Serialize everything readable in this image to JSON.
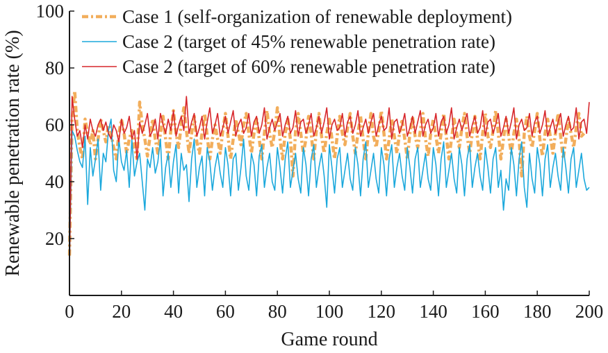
{
  "chart_data": {
    "type": "line",
    "title": "",
    "xlabel": "Game round",
    "ylabel": "Renewable penetration rate (%)",
    "xlim": [
      0,
      200
    ],
    "ylim": [
      0,
      100
    ],
    "x_ticks": [
      0,
      20,
      40,
      60,
      80,
      100,
      120,
      140,
      160,
      180,
      200
    ],
    "y_ticks": [
      20,
      40,
      60,
      80,
      100
    ],
    "grid": false,
    "legend_position": "top",
    "series": [
      {
        "name": "Case 1 (self-organization of renewable deployment)",
        "color": "#F2AE5C",
        "dash": "dash-dot",
        "x_start": 0,
        "x_step": 1,
        "values": [
          14,
          62,
          72,
          58,
          52,
          48,
          62,
          57,
          53,
          58,
          48,
          55,
          62,
          58,
          54,
          60,
          57,
          52,
          48,
          57,
          62,
          57,
          50,
          55,
          58,
          52,
          48,
          68,
          60,
          55,
          49,
          56,
          62,
          55,
          50,
          57,
          63,
          55,
          48,
          58,
          65,
          57,
          52,
          60,
          66,
          58,
          50,
          57,
          63,
          54,
          50,
          57,
          64,
          56,
          48,
          55,
          60,
          55,
          50,
          58,
          64,
          56,
          48,
          55,
          62,
          57,
          53,
          60,
          64,
          57,
          50,
          57,
          62,
          55,
          48,
          57,
          65,
          57,
          52,
          58,
          66,
          55,
          48,
          57,
          62,
          55,
          42,
          58,
          64,
          57,
          50,
          55,
          63,
          57,
          48,
          58,
          64,
          56,
          50,
          57,
          62,
          55,
          48,
          56,
          63,
          57,
          53,
          59,
          64,
          56,
          50,
          57,
          63,
          55,
          48,
          57,
          64,
          56,
          52,
          58,
          65,
          57,
          48,
          55,
          62,
          56,
          50,
          57,
          62,
          55,
          48,
          57,
          63,
          56,
          52,
          58,
          64,
          55,
          49,
          57,
          62,
          56,
          50,
          57,
          64,
          56,
          48,
          55,
          62,
          57,
          52,
          59,
          64,
          56,
          50,
          57,
          63,
          55,
          48,
          57,
          64,
          56,
          52,
          58,
          65,
          57,
          48,
          55,
          62,
          56,
          50,
          57,
          62,
          55,
          42,
          57,
          63,
          56,
          52,
          58,
          64,
          55,
          49,
          57,
          62,
          56,
          50,
          57,
          64,
          56,
          48,
          55,
          62,
          57,
          52,
          59,
          64,
          56,
          57
        ]
      },
      {
        "name": "Case 2 (target of 45% renewable penetration rate)",
        "color": "#1BA8DC",
        "dash": "solid",
        "x_start": 0,
        "x_step": 1,
        "values": [
          12,
          58,
          56,
          51,
          47,
          45,
          56,
          32,
          52,
          42,
          48,
          55,
          37,
          50,
          47,
          58,
          62,
          44,
          40,
          55,
          47,
          44,
          51,
          38,
          55,
          42,
          47,
          50,
          40,
          30,
          48,
          45,
          52,
          43,
          47,
          55,
          35,
          45,
          50,
          38,
          47,
          53,
          36,
          50,
          44,
          46,
          33,
          48,
          55,
          38,
          45,
          49,
          35,
          52,
          47,
          37,
          45,
          50,
          43,
          38,
          52,
          46,
          35,
          48,
          50,
          37,
          45,
          55,
          42,
          37,
          50,
          46,
          35,
          49,
          53,
          38,
          45,
          50,
          40,
          37,
          52,
          45,
          36,
          48,
          54,
          38,
          44,
          50,
          41,
          36,
          52,
          46,
          35,
          48,
          53,
          38,
          45,
          50,
          42,
          31,
          53,
          45,
          36,
          48,
          52,
          38,
          44,
          50,
          41,
          37,
          52,
          46,
          35,
          48,
          54,
          38,
          44,
          50,
          41,
          36,
          52,
          46,
          35,
          48,
          53,
          38,
          45,
          50,
          42,
          37,
          52,
          45,
          36,
          48,
          52,
          38,
          44,
          50,
          41,
          37,
          52,
          46,
          35,
          48,
          54,
          38,
          44,
          50,
          41,
          36,
          52,
          46,
          35,
          48,
          53,
          38,
          45,
          50,
          42,
          37,
          52,
          45,
          36,
          48,
          52,
          38,
          44,
          30,
          41,
          37,
          52,
          46,
          35,
          48,
          54,
          38,
          31,
          50,
          41,
          36,
          52,
          46,
          35,
          48,
          53,
          38,
          45,
          50,
          42,
          37,
          52,
          45,
          36,
          48,
          52,
          38,
          44,
          50,
          41,
          37,
          38
        ]
      },
      {
        "name": "Case 2 (target of 60% renewable penetration rate)",
        "color": "#D7262B",
        "dash": "solid",
        "x_start": 0,
        "x_step": 1,
        "values": [
          10,
          70,
          62,
          56,
          58,
          52,
          60,
          55,
          62,
          58,
          56,
          60,
          62,
          58,
          61,
          57,
          55,
          60,
          58,
          54,
          62,
          57,
          59,
          63,
          55,
          58,
          48,
          61,
          57,
          60,
          64,
          56,
          58,
          62,
          55,
          64,
          60,
          57,
          62,
          58,
          65,
          56,
          60,
          63,
          58,
          70,
          57,
          61,
          64,
          56,
          59,
          63,
          55,
          61,
          66,
          57,
          60,
          64,
          56,
          59,
          63,
          57,
          61,
          65,
          56,
          60,
          62,
          57,
          59,
          64,
          56,
          61,
          63,
          57,
          60,
          66,
          55,
          59,
          62,
          58,
          61,
          64,
          56,
          60,
          63,
          57,
          59,
          65,
          56,
          61,
          62,
          57,
          60,
          64,
          56,
          59,
          63,
          57,
          61,
          66,
          55,
          60,
          62,
          58,
          59,
          64,
          56,
          61,
          63,
          57,
          60,
          65,
          56,
          59,
          62,
          57,
          61,
          64,
          56,
          60,
          63,
          58,
          59,
          66,
          55,
          61,
          62,
          57,
          60,
          64,
          56,
          59,
          63,
          57,
          61,
          65,
          56,
          60,
          62,
          57,
          59,
          64,
          56,
          61,
          63,
          57,
          60,
          66,
          55,
          59,
          62,
          58,
          61,
          64,
          56,
          60,
          63,
          57,
          59,
          65,
          56,
          61,
          62,
          57,
          60,
          64,
          56,
          59,
          63,
          57,
          61,
          66,
          55,
          60,
          62,
          58,
          59,
          64,
          56,
          61,
          63,
          57,
          60,
          65,
          56,
          59,
          62,
          57,
          61,
          64,
          56,
          60,
          63,
          58,
          59,
          66,
          55,
          61,
          62,
          57,
          68
        ]
      }
    ]
  }
}
